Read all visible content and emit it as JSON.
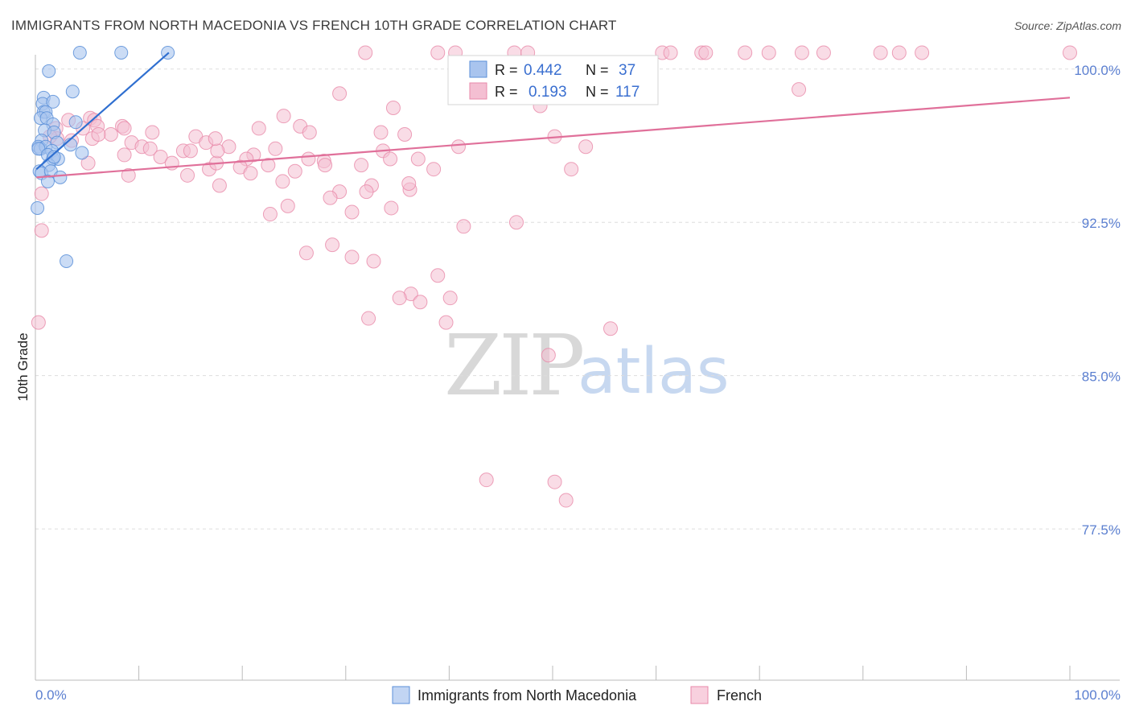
{
  "title": "IMMIGRANTS FROM NORTH MACEDONIA VS FRENCH 10TH GRADE CORRELATION CHART",
  "source": "Source: ZipAtlas.com",
  "watermark": {
    "zip": "ZIP",
    "atlas": "atlas"
  },
  "legend_box": {
    "row1": {
      "r_label": "R =",
      "r_value": "0.442",
      "n_label": "N =",
      "n_value": "37"
    },
    "row2": {
      "r_label": "R =",
      "r_value": "0.193",
      "n_label": "N =",
      "n_value": "117"
    }
  },
  "bottom_legend": {
    "series1": "Immigrants from North Macedonia",
    "series2": "French"
  },
  "chart_data": {
    "type": "scatter",
    "title": "IMMIGRANTS FROM NORTH MACEDONIA VS FRENCH 10TH GRADE CORRELATION CHART",
    "xlabel": "",
    "ylabel": "10th Grade",
    "xlim": [
      0,
      100
    ],
    "ylim": [
      70.1,
      100.7
    ],
    "x_tick_labels": {
      "left": "0.0%",
      "right": "100.0%"
    },
    "y_ticks": [
      {
        "value": 100.0,
        "label": "100.0%"
      },
      {
        "value": 92.5,
        "label": "92.5%"
      },
      {
        "value": 85.0,
        "label": "85.0%"
      },
      {
        "value": 77.5,
        "label": "77.5%"
      }
    ],
    "colors": {
      "blue": "#5b8fd8",
      "blue_fill": "#a9c4ee",
      "blue_line": "#2f6fd0",
      "pink": "#e889a9",
      "pink_fill": "#f4bfd2",
      "pink_line": "#e0709a"
    },
    "series": [
      {
        "name": "Immigrants from North Macedonia",
        "color": "#5b8fd8",
        "trend": {
          "x1": 0.1,
          "y1": 95.1,
          "x2": 12.9,
          "y2": 100.8
        },
        "points": [
          [
            4.3,
            100.8
          ],
          [
            8.3,
            100.8
          ],
          [
            12.8,
            100.8
          ],
          [
            1.3,
            99.9
          ],
          [
            3.6,
            98.9
          ],
          [
            0.8,
            98.6
          ],
          [
            0.7,
            98.3
          ],
          [
            1.7,
            98.4
          ],
          [
            0.8,
            97.9
          ],
          [
            1.0,
            97.9
          ],
          [
            0.5,
            97.6
          ],
          [
            1.1,
            97.6
          ],
          [
            3.9,
            97.4
          ],
          [
            1.7,
            97.3
          ],
          [
            0.9,
            97.0
          ],
          [
            1.8,
            96.9
          ],
          [
            0.6,
            96.5
          ],
          [
            0.3,
            96.2
          ],
          [
            0.5,
            96.1
          ],
          [
            1.0,
            96.2
          ],
          [
            0.3,
            96.1
          ],
          [
            3.4,
            96.3
          ],
          [
            2.1,
            96.4
          ],
          [
            1.6,
            96.0
          ],
          [
            1.2,
            95.8
          ],
          [
            1.7,
            95.6
          ],
          [
            2.2,
            95.6
          ],
          [
            4.5,
            95.9
          ],
          [
            1.3,
            95.3
          ],
          [
            0.4,
            95.0
          ],
          [
            0.6,
            94.9
          ],
          [
            1.5,
            95.0
          ],
          [
            2.4,
            94.7
          ],
          [
            1.2,
            94.5
          ],
          [
            0.2,
            93.2
          ],
          [
            3.0,
            90.6
          ],
          [
            1.8,
            95.7
          ]
        ]
      },
      {
        "name": "French",
        "color": "#e889a9",
        "trend": {
          "x1": 0.1,
          "y1": 94.7,
          "x2": 100.0,
          "y2": 98.6
        },
        "points": [
          [
            31.9,
            100.8
          ],
          [
            38.9,
            100.8
          ],
          [
            40.6,
            100.8
          ],
          [
            46.3,
            100.8
          ],
          [
            47.6,
            100.8
          ],
          [
            60.6,
            100.8
          ],
          [
            61.4,
            100.8
          ],
          [
            64.4,
            100.8
          ],
          [
            64.8,
            100.8
          ],
          [
            68.6,
            100.8
          ],
          [
            70.9,
            100.8
          ],
          [
            74.1,
            100.8
          ],
          [
            76.2,
            100.8
          ],
          [
            81.7,
            100.8
          ],
          [
            83.5,
            100.8
          ],
          [
            85.7,
            100.8
          ],
          [
            100.0,
            100.8
          ],
          [
            41.6,
            100.2
          ],
          [
            51.4,
            100.3
          ],
          [
            47.5,
            100.0
          ],
          [
            46.9,
            99.9
          ],
          [
            49.1,
            100.3
          ],
          [
            44.9,
            99.9
          ],
          [
            29.4,
            98.8
          ],
          [
            73.8,
            99.0
          ],
          [
            34.6,
            98.1
          ],
          [
            48.8,
            98.2
          ],
          [
            24.0,
            97.7
          ],
          [
            5.3,
            97.6
          ],
          [
            5.7,
            97.5
          ],
          [
            3.2,
            97.5
          ],
          [
            6.0,
            97.2
          ],
          [
            8.4,
            97.2
          ],
          [
            25.6,
            97.2
          ],
          [
            2.0,
            97.1
          ],
          [
            4.6,
            97.1
          ],
          [
            8.6,
            97.1
          ],
          [
            21.6,
            97.1
          ],
          [
            33.4,
            96.9
          ],
          [
            35.7,
            96.8
          ],
          [
            26.5,
            96.9
          ],
          [
            7.3,
            96.8
          ],
          [
            11.3,
            96.9
          ],
          [
            15.5,
            96.7
          ],
          [
            50.2,
            96.7
          ],
          [
            53.2,
            96.2
          ],
          [
            40.9,
            96.2
          ],
          [
            23.2,
            96.1
          ],
          [
            33.6,
            96.0
          ],
          [
            21.1,
            95.8
          ],
          [
            31.5,
            95.3
          ],
          [
            26.4,
            95.6
          ],
          [
            27.9,
            95.5
          ],
          [
            14.3,
            96.0
          ],
          [
            9.3,
            96.4
          ],
          [
            10.3,
            96.2
          ],
          [
            15.0,
            96.0
          ],
          [
            11.1,
            96.1
          ],
          [
            16.5,
            96.4
          ],
          [
            18.7,
            96.2
          ],
          [
            8.6,
            95.8
          ],
          [
            12.1,
            95.7
          ],
          [
            20.4,
            95.6
          ],
          [
            16.8,
            95.1
          ],
          [
            13.2,
            95.4
          ],
          [
            17.5,
            95.4
          ],
          [
            25.1,
            95.0
          ],
          [
            19.8,
            95.2
          ],
          [
            5.1,
            95.4
          ],
          [
            14.7,
            94.8
          ],
          [
            17.8,
            94.3
          ],
          [
            20.8,
            94.9
          ],
          [
            22.5,
            95.3
          ],
          [
            28.0,
            95.3
          ],
          [
            34.3,
            95.6
          ],
          [
            37.0,
            95.6
          ],
          [
            38.5,
            95.1
          ],
          [
            23.9,
            94.5
          ],
          [
            32.5,
            94.3
          ],
          [
            29.4,
            94.0
          ],
          [
            36.2,
            94.1
          ],
          [
            32.0,
            94.0
          ],
          [
            28.5,
            93.7
          ],
          [
            24.4,
            93.3
          ],
          [
            34.4,
            93.2
          ],
          [
            30.6,
            93.0
          ],
          [
            22.7,
            92.9
          ],
          [
            9.0,
            94.8
          ],
          [
            17.6,
            96.0
          ],
          [
            51.8,
            95.1
          ],
          [
            17.4,
            96.6
          ],
          [
            2.1,
            96.6
          ],
          [
            5.5,
            96.6
          ],
          [
            6.1,
            96.8
          ],
          [
            3.5,
            96.5
          ],
          [
            1.4,
            96.7
          ],
          [
            36.1,
            94.4
          ],
          [
            46.5,
            92.5
          ],
          [
            41.4,
            92.3
          ],
          [
            26.2,
            91.0
          ],
          [
            28.7,
            91.4
          ],
          [
            30.6,
            90.8
          ],
          [
            32.7,
            90.6
          ],
          [
            38.9,
            89.9
          ],
          [
            36.3,
            89.0
          ],
          [
            40.1,
            88.8
          ],
          [
            37.2,
            88.6
          ],
          [
            35.2,
            88.8
          ],
          [
            32.2,
            87.8
          ],
          [
            39.7,
            87.6
          ],
          [
            55.6,
            87.3
          ],
          [
            49.6,
            86.0
          ],
          [
            43.6,
            79.9
          ],
          [
            50.2,
            79.8
          ],
          [
            51.3,
            78.9
          ],
          [
            0.6,
            93.9
          ],
          [
            0.6,
            92.1
          ],
          [
            0.3,
            87.6
          ]
        ]
      }
    ]
  }
}
